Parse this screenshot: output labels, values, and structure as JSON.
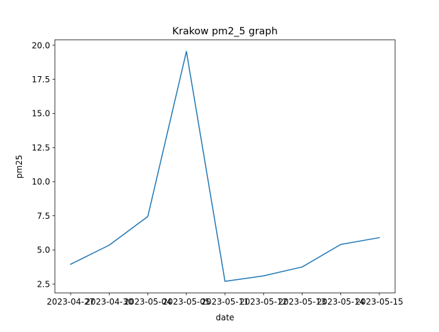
{
  "chart_data": {
    "type": "line",
    "title": "Krakow pm2_5 graph",
    "xlabel": "date",
    "ylabel": "pm25",
    "categories": [
      "2023-04-27",
      "2023-04-30",
      "2023-05-04",
      "2023-05-05",
      "2023-05-11",
      "2023-05-12",
      "2023-05-13",
      "2023-05-14",
      "2023-05-15"
    ],
    "x_tick_labels": [
      "2023-04-27",
      "2023-04-30",
      "2023-05-04",
      "2023-05-05",
      "2023-05-11",
      "2023-05-12",
      "2023-05-13",
      "2023-05-14",
      "2023-05-15"
    ],
    "series": [
      {
        "values": [
          3.95,
          5.35,
          7.45,
          19.55,
          2.7,
          3.1,
          3.75,
          5.4,
          5.9
        ],
        "color": "#1f77b4"
      }
    ],
    "y_ticks": [
      2.5,
      5.0,
      7.5,
      10.0,
      12.5,
      15.0,
      17.5,
      20.0
    ],
    "y_tick_labels": [
      "2.5",
      "5.0",
      "7.5",
      "10.0",
      "12.5",
      "15.0",
      "17.5",
      "20.0"
    ],
    "ylim": [
      1.85,
      20.4
    ],
    "grid": false,
    "legend": "none"
  }
}
